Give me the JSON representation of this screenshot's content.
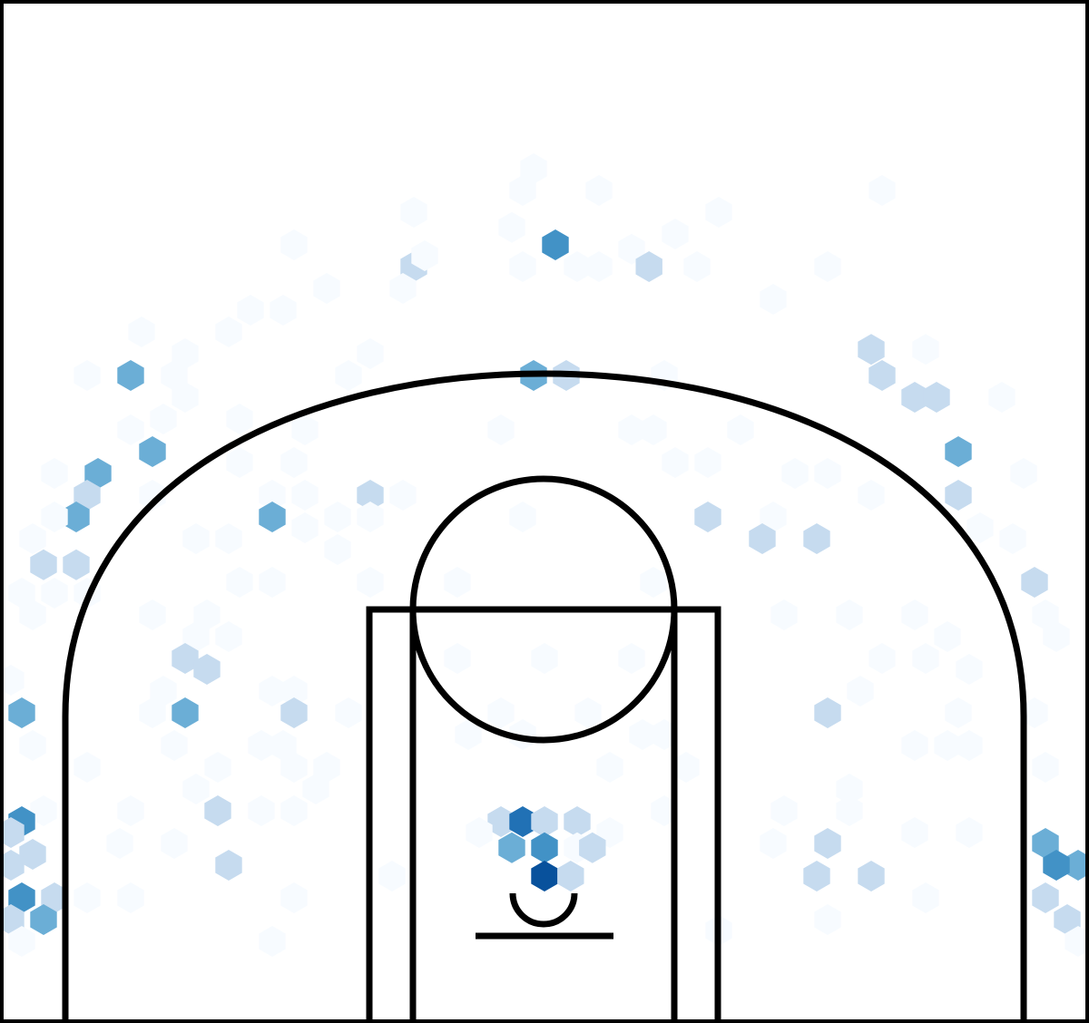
{
  "chart_data": {
    "type": "hexbin",
    "title": "",
    "xlabel": "",
    "ylabel": "",
    "x_range": [
      -250,
      250
    ],
    "y_range": [
      -47.5,
      422.5
    ],
    "colormap": [
      "#f7fbff",
      "#deebf7",
      "#c6dbef",
      "#9ecae1",
      "#6baed6",
      "#4292c6",
      "#2171b5",
      "#08519c",
      "#08306b"
    ],
    "bins": [
      {
        "x": -5,
        "y": 345,
        "v": 0.05
      },
      {
        "x": -10,
        "y": 335,
        "v": 0.05
      },
      {
        "x": 25,
        "y": 335,
        "v": 0.05
      },
      {
        "x": 155,
        "y": 335,
        "v": 0.05
      },
      {
        "x": -60,
        "y": 325,
        "v": 0.05
      },
      {
        "x": 80,
        "y": 325,
        "v": 0.05
      },
      {
        "x": -15,
        "y": 318,
        "v": 0.05
      },
      {
        "x": 60,
        "y": 315,
        "v": 0.05
      },
      {
        "x": -115,
        "y": 310,
        "v": 0.05
      },
      {
        "x": 5,
        "y": 310,
        "v": 0.6
      },
      {
        "x": 40,
        "y": 308,
        "v": 0.05
      },
      {
        "x": -60,
        "y": 300,
        "v": 0.3
      },
      {
        "x": -55,
        "y": 305,
        "v": 0.05
      },
      {
        "x": -10,
        "y": 300,
        "v": 0.05
      },
      {
        "x": 15,
        "y": 300,
        "v": 0.05
      },
      {
        "x": 25,
        "y": 300,
        "v": 0.05
      },
      {
        "x": 48,
        "y": 300,
        "v": 0.3
      },
      {
        "x": 70,
        "y": 300,
        "v": 0.05
      },
      {
        "x": 130,
        "y": 300,
        "v": 0.05
      },
      {
        "x": -100,
        "y": 290,
        "v": 0.05
      },
      {
        "x": -65,
        "y": 290,
        "v": 0.05
      },
      {
        "x": -135,
        "y": 280,
        "v": 0.05
      },
      {
        "x": -120,
        "y": 280,
        "v": 0.05
      },
      {
        "x": -145,
        "y": 270,
        "v": 0.05
      },
      {
        "x": 105,
        "y": 285,
        "v": 0.05
      },
      {
        "x": -185,
        "y": 270,
        "v": 0.05
      },
      {
        "x": -165,
        "y": 260,
        "v": 0.05
      },
      {
        "x": 150,
        "y": 262,
        "v": 0.3
      },
      {
        "x": 175,
        "y": 262,
        "v": 0.05
      },
      {
        "x": -190,
        "y": 250,
        "v": 0.45
      },
      {
        "x": -170,
        "y": 250,
        "v": 0.05
      },
      {
        "x": -210,
        "y": 250,
        "v": 0.05
      },
      {
        "x": -90,
        "y": 250,
        "v": 0.05
      },
      {
        "x": -80,
        "y": 260,
        "v": 0.05
      },
      {
        "x": -5,
        "y": 250,
        "v": 0.45
      },
      {
        "x": 10,
        "y": 250,
        "v": 0.3
      },
      {
        "x": 55,
        "y": 250,
        "v": 0.05
      },
      {
        "x": 155,
        "y": 250,
        "v": 0.3
      },
      {
        "x": 170,
        "y": 240,
        "v": 0.3
      },
      {
        "x": 180,
        "y": 240,
        "v": 0.3
      },
      {
        "x": 210,
        "y": 240,
        "v": 0.05
      },
      {
        "x": -165,
        "y": 240,
        "v": 0.05
      },
      {
        "x": -175,
        "y": 230,
        "v": 0.05
      },
      {
        "x": -140,
        "y": 230,
        "v": 0.05
      },
      {
        "x": -190,
        "y": 225,
        "v": 0.05
      },
      {
        "x": -110,
        "y": 225,
        "v": 0.05
      },
      {
        "x": -20,
        "y": 225,
        "v": 0.05
      },
      {
        "x": 40,
        "y": 225,
        "v": 0.05
      },
      {
        "x": 50,
        "y": 225,
        "v": 0.05
      },
      {
        "x": 90,
        "y": 225,
        "v": 0.05
      },
      {
        "x": -180,
        "y": 215,
        "v": 0.45
      },
      {
        "x": 190,
        "y": 215,
        "v": 0.45
      },
      {
        "x": -205,
        "y": 205,
        "v": 0.45
      },
      {
        "x": -225,
        "y": 205,
        "v": 0.05
      },
      {
        "x": -140,
        "y": 210,
        "v": 0.05
      },
      {
        "x": -115,
        "y": 210,
        "v": 0.05
      },
      {
        "x": 60,
        "y": 210,
        "v": 0.05
      },
      {
        "x": 75,
        "y": 210,
        "v": 0.05
      },
      {
        "x": 115,
        "y": 205,
        "v": 0.05
      },
      {
        "x": 130,
        "y": 205,
        "v": 0.05
      },
      {
        "x": 220,
        "y": 205,
        "v": 0.05
      },
      {
        "x": -210,
        "y": 195,
        "v": 0.3
      },
      {
        "x": -180,
        "y": 195,
        "v": 0.05
      },
      {
        "x": -125,
        "y": 195,
        "v": 0.05
      },
      {
        "x": -110,
        "y": 195,
        "v": 0.05
      },
      {
        "x": -80,
        "y": 195,
        "v": 0.3
      },
      {
        "x": -65,
        "y": 195,
        "v": 0.05
      },
      {
        "x": 190,
        "y": 195,
        "v": 0.3
      },
      {
        "x": 150,
        "y": 195,
        "v": 0.05
      },
      {
        "x": -215,
        "y": 185,
        "v": 0.45
      },
      {
        "x": -225,
        "y": 185,
        "v": 0.05
      },
      {
        "x": -125,
        "y": 185,
        "v": 0.45
      },
      {
        "x": -110,
        "y": 180,
        "v": 0.05
      },
      {
        "x": -95,
        "y": 185,
        "v": 0.05
      },
      {
        "x": -80,
        "y": 185,
        "v": 0.05
      },
      {
        "x": -10,
        "y": 185,
        "v": 0.05
      },
      {
        "x": 75,
        "y": 185,
        "v": 0.3
      },
      {
        "x": 105,
        "y": 185,
        "v": 0.05
      },
      {
        "x": 200,
        "y": 180,
        "v": 0.05
      },
      {
        "x": -235,
        "y": 175,
        "v": 0.05
      },
      {
        "x": -160,
        "y": 175,
        "v": 0.05
      },
      {
        "x": -145,
        "y": 175,
        "v": 0.05
      },
      {
        "x": -95,
        "y": 170,
        "v": 0.05
      },
      {
        "x": 100,
        "y": 175,
        "v": 0.3
      },
      {
        "x": 125,
        "y": 175,
        "v": 0.3
      },
      {
        "x": 215,
        "y": 175,
        "v": 0.05
      },
      {
        "x": -230,
        "y": 163,
        "v": 0.3
      },
      {
        "x": -215,
        "y": 163,
        "v": 0.3
      },
      {
        "x": -240,
        "y": 150,
        "v": 0.05
      },
      {
        "x": -225,
        "y": 150,
        "v": 0.05
      },
      {
        "x": -210,
        "y": 150,
        "v": 0.05
      },
      {
        "x": -140,
        "y": 155,
        "v": 0.05
      },
      {
        "x": -125,
        "y": 155,
        "v": 0.05
      },
      {
        "x": -80,
        "y": 155,
        "v": 0.05
      },
      {
        "x": -40,
        "y": 155,
        "v": 0.05
      },
      {
        "x": 50,
        "y": 155,
        "v": 0.05
      },
      {
        "x": 225,
        "y": 155,
        "v": 0.3
      },
      {
        "x": 230,
        "y": 140,
        "v": 0.05
      },
      {
        "x": -235,
        "y": 140,
        "v": 0.05
      },
      {
        "x": -180,
        "y": 140,
        "v": 0.05
      },
      {
        "x": -155,
        "y": 140,
        "v": 0.05
      },
      {
        "x": 110,
        "y": 140,
        "v": 0.05
      },
      {
        "x": 140,
        "y": 140,
        "v": 0.05
      },
      {
        "x": 170,
        "y": 140,
        "v": 0.05
      },
      {
        "x": 185,
        "y": 130,
        "v": 0.05
      },
      {
        "x": 235,
        "y": 130,
        "v": 0.05
      },
      {
        "x": -160,
        "y": 130,
        "v": 0.05
      },
      {
        "x": -145,
        "y": 130,
        "v": 0.05
      },
      {
        "x": -165,
        "y": 120,
        "v": 0.3
      },
      {
        "x": -155,
        "y": 115,
        "v": 0.3
      },
      {
        "x": -40,
        "y": 120,
        "v": 0.05
      },
      {
        "x": 0,
        "y": 120,
        "v": 0.05
      },
      {
        "x": 40,
        "y": 120,
        "v": 0.05
      },
      {
        "x": 155,
        "y": 120,
        "v": 0.05
      },
      {
        "x": 175,
        "y": 120,
        "v": 0.05
      },
      {
        "x": 195,
        "y": 115,
        "v": 0.05
      },
      {
        "x": -245,
        "y": 110,
        "v": 0.05
      },
      {
        "x": -175,
        "y": 105,
        "v": 0.05
      },
      {
        "x": -125,
        "y": 105,
        "v": 0.05
      },
      {
        "x": -115,
        "y": 105,
        "v": 0.05
      },
      {
        "x": 145,
        "y": 105,
        "v": 0.05
      },
      {
        "x": -240,
        "y": 95,
        "v": 0.55
      },
      {
        "x": -165,
        "y": 95,
        "v": 0.45
      },
      {
        "x": -115,
        "y": 95,
        "v": 0.3
      },
      {
        "x": -180,
        "y": 95,
        "v": 0.05
      },
      {
        "x": -90,
        "y": 95,
        "v": 0.05
      },
      {
        "x": 130,
        "y": 95,
        "v": 0.3
      },
      {
        "x": 190,
        "y": 95,
        "v": 0.05
      },
      {
        "x": 225,
        "y": 95,
        "v": 0.05
      },
      {
        "x": -20,
        "y": 95,
        "v": 0.05
      },
      {
        "x": 20,
        "y": 95,
        "v": 0.05
      },
      {
        "x": -35,
        "y": 85,
        "v": 0.05
      },
      {
        "x": -10,
        "y": 85,
        "v": 0.05
      },
      {
        "x": 45,
        "y": 85,
        "v": 0.05
      },
      {
        "x": 55,
        "y": 85,
        "v": 0.05
      },
      {
        "x": -235,
        "y": 80,
        "v": 0.05
      },
      {
        "x": -170,
        "y": 80,
        "v": 0.05
      },
      {
        "x": -130,
        "y": 80,
        "v": 0.05
      },
      {
        "x": -120,
        "y": 80,
        "v": 0.05
      },
      {
        "x": 170,
        "y": 80,
        "v": 0.05
      },
      {
        "x": 185,
        "y": 80,
        "v": 0.05
      },
      {
        "x": 195,
        "y": 80,
        "v": 0.05
      },
      {
        "x": -210,
        "y": 70,
        "v": 0.05
      },
      {
        "x": -150,
        "y": 70,
        "v": 0.05
      },
      {
        "x": -115,
        "y": 70,
        "v": 0.05
      },
      {
        "x": -100,
        "y": 70,
        "v": 0.05
      },
      {
        "x": 30,
        "y": 70,
        "v": 0.05
      },
      {
        "x": 65,
        "y": 70,
        "v": 0.05
      },
      {
        "x": 230,
        "y": 70,
        "v": 0.05
      },
      {
        "x": -160,
        "y": 60,
        "v": 0.05
      },
      {
        "x": -105,
        "y": 60,
        "v": 0.05
      },
      {
        "x": 140,
        "y": 60,
        "v": 0.05
      },
      {
        "x": -230,
        "y": 50,
        "v": 0.05
      },
      {
        "x": -190,
        "y": 50,
        "v": 0.05
      },
      {
        "x": -150,
        "y": 50,
        "v": 0.3
      },
      {
        "x": -130,
        "y": 50,
        "v": 0.05
      },
      {
        "x": -115,
        "y": 50,
        "v": 0.05
      },
      {
        "x": 55,
        "y": 50,
        "v": 0.05
      },
      {
        "x": 110,
        "y": 50,
        "v": 0.05
      },
      {
        "x": 140,
        "y": 50,
        "v": 0.05
      },
      {
        "x": -240,
        "y": 45,
        "v": 0.6
      },
      {
        "x": -245,
        "y": 40,
        "v": 0.3
      },
      {
        "x": 170,
        "y": 40,
        "v": 0.05
      },
      {
        "x": 195,
        "y": 40,
        "v": 0.05
      },
      {
        "x": -235,
        "y": 30,
        "v": 0.3
      },
      {
        "x": -195,
        "y": 35,
        "v": 0.05
      },
      {
        "x": -170,
        "y": 35,
        "v": 0.05
      },
      {
        "x": -20,
        "y": 45,
        "v": 0.3
      },
      {
        "x": -10,
        "y": 45,
        "v": 0.75
      },
      {
        "x": 0,
        "y": 45,
        "v": 0.3
      },
      {
        "x": 15,
        "y": 45,
        "v": 0.3
      },
      {
        "x": -30,
        "y": 40,
        "v": 0.05
      },
      {
        "x": 30,
        "y": 40,
        "v": 0.05
      },
      {
        "x": -15,
        "y": 33,
        "v": 0.45
      },
      {
        "x": 0,
        "y": 33,
        "v": 0.65
      },
      {
        "x": 15,
        "y": 33,
        "v": 0.05
      },
      {
        "x": 22,
        "y": 33,
        "v": 0.3
      },
      {
        "x": 105,
        "y": 35,
        "v": 0.05
      },
      {
        "x": 130,
        "y": 35,
        "v": 0.3
      },
      {
        "x": 230,
        "y": 35,
        "v": 0.45
      },
      {
        "x": 245,
        "y": 25,
        "v": 0.55
      },
      {
        "x": 235,
        "y": 25,
        "v": 0.6
      },
      {
        "x": -245,
        "y": 25,
        "v": 0.3
      },
      {
        "x": -70,
        "y": 20,
        "v": 0.05
      },
      {
        "x": -145,
        "y": 25,
        "v": 0.3
      },
      {
        "x": 0,
        "y": 20,
        "v": 0.9
      },
      {
        "x": 12,
        "y": 20,
        "v": 0.3
      },
      {
        "x": 125,
        "y": 20,
        "v": 0.3
      },
      {
        "x": 150,
        "y": 20,
        "v": 0.3
      },
      {
        "x": -240,
        "y": 10,
        "v": 0.65
      },
      {
        "x": -225,
        "y": 10,
        "v": 0.3
      },
      {
        "x": -190,
        "y": 10,
        "v": 0.05
      },
      {
        "x": -210,
        "y": 10,
        "v": 0.05
      },
      {
        "x": -115,
        "y": 10,
        "v": 0.05
      },
      {
        "x": 175,
        "y": 10,
        "v": 0.05
      },
      {
        "x": 230,
        "y": 10,
        "v": 0.3
      },
      {
        "x": -245,
        "y": 0,
        "v": 0.3
      },
      {
        "x": -230,
        "y": 0,
        "v": 0.45
      },
      {
        "x": 130,
        "y": 0,
        "v": 0.05
      },
      {
        "x": 240,
        "y": 0,
        "v": 0.3
      },
      {
        "x": 80,
        "y": -5,
        "v": 0.05
      },
      {
        "x": -240,
        "y": -10,
        "v": 0.05
      },
      {
        "x": -125,
        "y": -10,
        "v": 0.05
      },
      {
        "x": 245,
        "y": -10,
        "v": 0.05
      }
    ]
  }
}
